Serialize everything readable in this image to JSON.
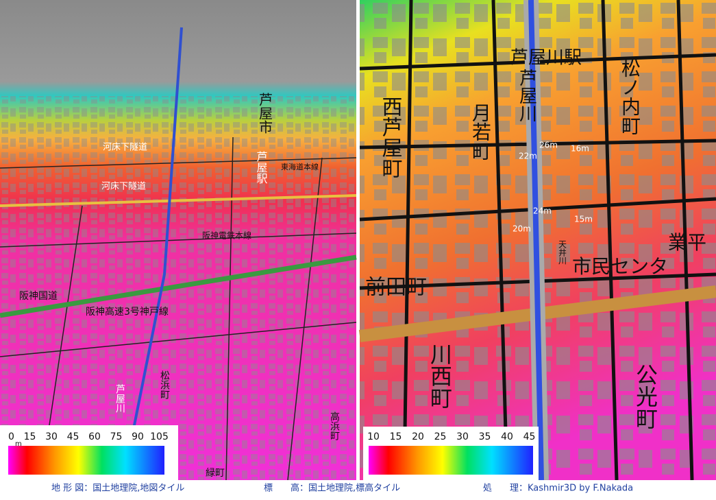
{
  "left_map": {
    "labels": [
      "河床下隧道",
      "河床下隧道",
      "芦屋市",
      "芦屋駅",
      "東海道本線",
      "阪神電鉄本線",
      "阪神国道",
      "阪神高速3号神戸線",
      "芦屋川",
      "松浜町",
      "高浜町",
      "緑町"
    ],
    "legend": {
      "unit": "m",
      "ticks": [
        0,
        15,
        30,
        45,
        60,
        75,
        90,
        105
      ]
    }
  },
  "right_map": {
    "labels": [
      "芦屋川駅",
      "松ノ内町",
      "西芦屋町",
      "月若町",
      "芦屋川",
      "22m",
      "26m",
      "16m",
      "24m",
      "20m",
      "15m",
      "天井川",
      "市民センタ",
      "前田町",
      "川西町",
      "公光町",
      "業平"
    ],
    "legend": {
      "ticks": [
        10,
        15,
        20,
        25,
        30,
        35,
        40,
        45
      ]
    }
  },
  "footer": {
    "map": "地 形 図：国土地理院,地図タイル",
    "elevation": "標　　高：国土地理院,標高タイル",
    "processing": "処　　理：Kashmir3D by F.Nakada"
  }
}
